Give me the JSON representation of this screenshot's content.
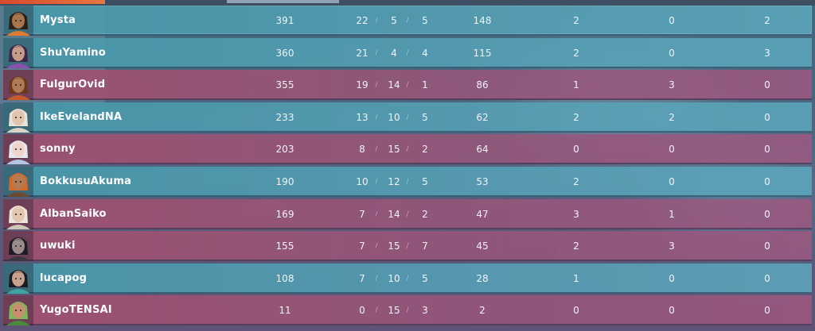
{
  "scoreboard": {
    "players": [
      {
        "name": "Mysta",
        "team": "a",
        "score": "391",
        "kills": "22",
        "deaths": "5",
        "assists": "5",
        "econ": "148",
        "first_bloods": "2",
        "plants": "0",
        "defuses": "2",
        "avatar_icon": "agent-portrait-icon",
        "skin": "#a8764e",
        "hair": "#2b2118",
        "accent": "#e07a2e"
      },
      {
        "name": "ShuYamino",
        "team": "a",
        "score": "360",
        "kills": "21",
        "deaths": "4",
        "assists": "4",
        "econ": "115",
        "first_bloods": "2",
        "plants": "0",
        "defuses": "3",
        "avatar_icon": "agent-portrait-icon",
        "skin": "#c79a8a",
        "hair": "#3a2a4a",
        "accent": "#8b4fb0"
      },
      {
        "name": "FulgurOvid",
        "team": "b",
        "score": "355",
        "kills": "19",
        "deaths": "14",
        "assists": "1",
        "econ": "86",
        "first_bloods": "1",
        "plants": "3",
        "defuses": "0",
        "avatar_icon": "agent-portrait-icon",
        "skin": "#b07a55",
        "hair": "#6b3a1e",
        "accent": "#c55a2a"
      },
      {
        "name": "IkeEvelandNA",
        "team": "a",
        "score": "233",
        "kills": "13",
        "deaths": "10",
        "assists": "5",
        "econ": "62",
        "first_bloods": "2",
        "plants": "2",
        "defuses": "0",
        "avatar_icon": "agent-portrait-icon",
        "skin": "#e0c4ae",
        "hair": "#e8e2d8",
        "accent": "#d9d2c6"
      },
      {
        "name": "sonny",
        "team": "b",
        "score": "203",
        "kills": "8",
        "deaths": "15",
        "assists": "2",
        "econ": "64",
        "first_bloods": "0",
        "plants": "0",
        "defuses": "0",
        "avatar_icon": "agent-portrait-icon",
        "skin": "#f0d4cc",
        "hair": "#e6e8f0",
        "accent": "#b6c4e6"
      },
      {
        "name": "BokkusuAkuma",
        "team": "a",
        "score": "190",
        "kills": "10",
        "deaths": "12",
        "assists": "5",
        "econ": "53",
        "first_bloods": "2",
        "plants": "0",
        "defuses": "0",
        "avatar_icon": "agent-portrait-icon",
        "skin": "#b47a52",
        "hair": "#d46a2a",
        "accent": "#6a4a30"
      },
      {
        "name": "AlbanSaiko",
        "team": "b",
        "score": "169",
        "kills": "7",
        "deaths": "14",
        "assists": "2",
        "econ": "47",
        "first_bloods": "3",
        "plants": "1",
        "defuses": "0",
        "avatar_icon": "agent-portrait-icon",
        "skin": "#e2c6b0",
        "hair": "#ece6da",
        "accent": "#cfc6b6"
      },
      {
        "name": "uwuki",
        "team": "b",
        "score": "155",
        "kills": "7",
        "deaths": "15",
        "assists": "7",
        "econ": "45",
        "first_bloods": "2",
        "plants": "3",
        "defuses": "0",
        "avatar_icon": "agent-portrait-icon",
        "skin": "#9a8a8c",
        "hair": "#1d1c24",
        "accent": "#3a3644"
      },
      {
        "name": "lucapog",
        "team": "a",
        "score": "108",
        "kills": "7",
        "deaths": "10",
        "assists": "5",
        "econ": "28",
        "first_bloods": "1",
        "plants": "0",
        "defuses": "0",
        "avatar_icon": "agent-portrait-icon",
        "skin": "#c8a08e",
        "hair": "#1c1a22",
        "accent": "#3fa3a0"
      },
      {
        "name": "YugoTENSAI",
        "team": "b",
        "score": "11",
        "kills": "0",
        "deaths": "15",
        "assists": "3",
        "econ": "2",
        "first_bloods": "0",
        "plants": "0",
        "defuses": "0",
        "avatar_icon": "agent-portrait-icon",
        "skin": "#c89070",
        "hair": "#7fb65a",
        "accent": "#4a8a3a"
      }
    ]
  }
}
